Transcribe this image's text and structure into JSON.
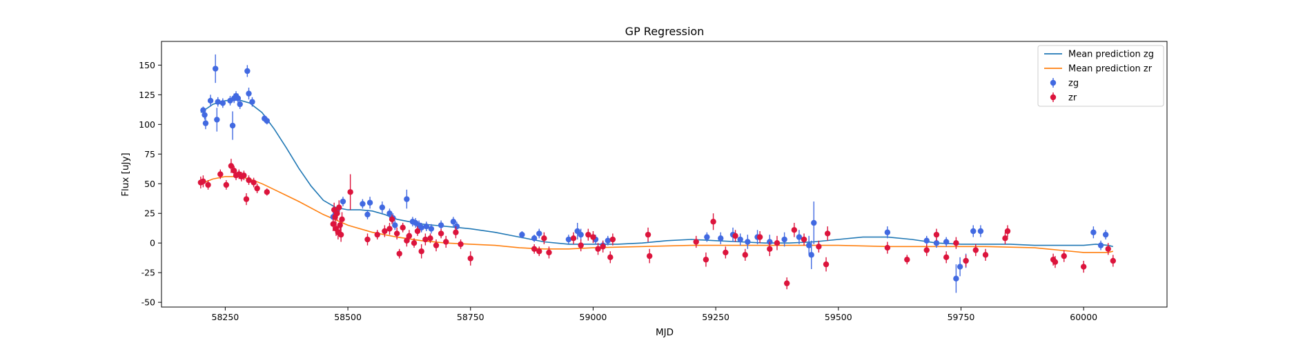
{
  "chart_data": {
    "type": "scatter",
    "title": "GP Regression",
    "xlabel": "MJD",
    "ylabel": "Flux [uJy]",
    "xlim": [
      58120,
      60170
    ],
    "ylim": [
      -54,
      170
    ],
    "xticks": [
      58250,
      58500,
      58750,
      59000,
      59250,
      59500,
      59750,
      60000
    ],
    "yticks": [
      -50,
      -25,
      0,
      25,
      50,
      75,
      100,
      125,
      150
    ],
    "legend_position": "top-right",
    "colors": {
      "mean_zg": "#1f77b4",
      "mean_zr": "#ff7f0e",
      "zg": "#4169e1",
      "zr": "#dc143c"
    },
    "legend": [
      {
        "label": "Mean prediction zg",
        "kind": "line",
        "color": "#1f77b4"
      },
      {
        "label": "Mean prediction zr",
        "kind": "line",
        "color": "#ff7f0e"
      },
      {
        "label": "zg",
        "kind": "errorbar",
        "color": "#4169e1"
      },
      {
        "label": "zr",
        "kind": "errorbar",
        "color": "#dc143c"
      }
    ],
    "lines": [
      {
        "name": "Mean prediction zg",
        "color": "#1f77b4",
        "x": [
          58200,
          58225,
          58250,
          58275,
          58300,
          58325,
          58350,
          58375,
          58400,
          58425,
          58450,
          58475,
          58500,
          58525,
          58550,
          58575,
          58600,
          58650,
          58700,
          58750,
          58800,
          58850,
          58900,
          58950,
          59000,
          59050,
          59100,
          59150,
          59200,
          59250,
          59300,
          59350,
          59400,
          59450,
          59500,
          59550,
          59600,
          59650,
          59700,
          59750,
          59800,
          59850,
          59900,
          59950,
          60000,
          60025,
          60050,
          60060
        ],
        "y": [
          110,
          117,
          120,
          121,
          118,
          110,
          96,
          80,
          63,
          48,
          36,
          30,
          28,
          28,
          27,
          24,
          20,
          16,
          14,
          12,
          9,
          5,
          1,
          -1,
          -1,
          -1,
          0,
          2,
          3,
          2,
          1,
          0,
          0,
          1,
          3,
          5,
          5,
          3,
          0,
          -1,
          -1,
          -1,
          -2,
          -2,
          -2,
          -1,
          -2,
          -3
        ]
      },
      {
        "name": "Mean prediction zr",
        "color": "#ff7f0e",
        "x": [
          58200,
          58225,
          58250,
          58275,
          58300,
          58325,
          58350,
          58375,
          58400,
          58450,
          58500,
          58550,
          58600,
          58650,
          58700,
          58750,
          58800,
          58850,
          58900,
          58950,
          59000,
          59100,
          59200,
          59300,
          59400,
          59500,
          59600,
          59700,
          59800,
          59900,
          59950,
          60000,
          60050,
          60060
        ],
        "y": [
          50,
          54,
          56,
          56,
          54,
          50,
          45,
          40,
          35,
          24,
          15,
          9,
          5,
          2,
          0,
          -1,
          -2,
          -4,
          -5,
          -5,
          -4,
          -3,
          -2,
          -2,
          -2,
          -2,
          -3,
          -3,
          -3,
          -4,
          -6,
          -8,
          -8,
          -7
        ]
      }
    ],
    "series": [
      {
        "name": "zg",
        "color": "#4169e1",
        "x": [
          58205,
          58208,
          58210,
          58220,
          58230,
          58233,
          58235,
          58245,
          58260,
          58265,
          58268,
          58272,
          58276,
          58280,
          58295,
          58298,
          58305,
          58330,
          58335,
          58470,
          58478,
          58490,
          58530,
          58540,
          58545,
          58570,
          58585,
          58592,
          58596,
          58620,
          58632,
          58638,
          58645,
          58650,
          58660,
          58670,
          58690,
          58715,
          58722,
          58855,
          58880,
          58890,
          58950,
          58968,
          58975,
          59005,
          59020,
          59030,
          59232,
          59260,
          59285,
          59300,
          59315,
          59335,
          59360,
          59390,
          59420,
          59440,
          59445,
          59450,
          59600,
          59680,
          59700,
          59720,
          59740,
          59748,
          59760,
          59775,
          59790,
          60020,
          60035,
          60045
        ],
        "y": [
          112,
          108,
          101,
          120,
          147,
          104,
          119,
          118,
          120,
          99,
          122,
          124,
          122,
          117,
          145,
          126,
          119,
          105,
          103,
          22,
          27,
          35,
          33,
          24,
          34,
          30,
          25,
          21,
          15,
          37,
          18,
          17,
          15,
          13,
          14,
          12,
          15,
          18,
          14,
          7,
          4,
          8,
          3,
          10,
          7,
          3,
          -2,
          2,
          5,
          4,
          7,
          3,
          1,
          5,
          1,
          3,
          5,
          -2,
          -10,
          17,
          9,
          2,
          0,
          1,
          -30,
          -20,
          -15,
          10,
          10,
          9,
          -2,
          7
        ],
        "err": [
          3,
          4,
          5,
          5,
          12,
          10,
          4,
          4,
          4,
          12,
          4,
          4,
          4,
          4,
          5,
          5,
          4,
          3,
          3,
          4,
          4,
          4,
          4,
          4,
          5,
          5,
          4,
          4,
          4,
          8,
          4,
          4,
          4,
          4,
          4,
          4,
          4,
          4,
          4,
          3,
          3,
          4,
          4,
          7,
          5,
          4,
          4,
          4,
          4,
          5,
          6,
          5,
          6,
          6,
          6,
          6,
          6,
          8,
          12,
          18,
          5,
          4,
          4,
          4,
          12,
          8,
          6,
          5,
          5,
          5,
          4,
          4
        ]
      },
      {
        "name": "zr",
        "color": "#dc143c",
        "x": [
          58200,
          58205,
          58215,
          58240,
          58252,
          58262,
          58268,
          58272,
          58278,
          58283,
          58288,
          58293,
          58298,
          58308,
          58315,
          58335,
          58470,
          58472,
          58474,
          58476,
          58478,
          58480,
          58482,
          58484,
          58486,
          58488,
          58505,
          58540,
          58560,
          58575,
          58585,
          58590,
          58600,
          58605,
          58612,
          58620,
          58625,
          58635,
          58642,
          58650,
          58658,
          58668,
          58680,
          58690,
          58700,
          58720,
          58730,
          58750,
          58880,
          58890,
          58900,
          58910,
          58960,
          58975,
          58990,
          59000,
          59010,
          59020,
          59035,
          59040,
          59112,
          59115,
          59210,
          59230,
          59245,
          59270,
          59290,
          59310,
          59340,
          59360,
          59375,
          59395,
          59410,
          59430,
          59460,
          59475,
          59478,
          59600,
          59640,
          59680,
          59700,
          59720,
          59740,
          59760,
          59780,
          59800,
          59840,
          59845,
          59938,
          59942,
          59960,
          60000,
          60050,
          60060
        ],
        "y": [
          51,
          52,
          49,
          58,
          49,
          65,
          61,
          57,
          58,
          56,
          57,
          37,
          53,
          51,
          46,
          43,
          16,
          28,
          22,
          12,
          25,
          9,
          30,
          15,
          7,
          20,
          43,
          3,
          7,
          10,
          12,
          20,
          8,
          -9,
          13,
          2,
          6,
          0,
          10,
          -7,
          3,
          4,
          -2,
          8,
          1,
          9,
          -1,
          -13,
          -5,
          -7,
          4,
          -8,
          4,
          -2,
          7,
          5,
          -5,
          -3,
          -12,
          3,
          7,
          -11,
          1,
          -14,
          18,
          -8,
          6,
          -10,
          5,
          -5,
          0,
          -34,
          11,
          3,
          -3,
          -18,
          8,
          -4,
          -14,
          -6,
          7,
          -12,
          0,
          -15,
          -6,
          -10,
          4,
          10,
          -14,
          -16,
          -11,
          -20,
          -5,
          -15
        ],
        "err": [
          5,
          5,
          4,
          4,
          4,
          6,
          4,
          4,
          4,
          4,
          4,
          5,
          4,
          4,
          4,
          3,
          6,
          6,
          6,
          6,
          6,
          6,
          6,
          6,
          6,
          6,
          15,
          5,
          4,
          5,
          5,
          4,
          5,
          4,
          4,
          5,
          5,
          4,
          4,
          6,
          5,
          4,
          5,
          4,
          5,
          5,
          4,
          6,
          4,
          4,
          5,
          5,
          5,
          5,
          5,
          5,
          5,
          5,
          5,
          5,
          6,
          6,
          5,
          6,
          7,
          5,
          5,
          5,
          5,
          6,
          6,
          5,
          6,
          5,
          5,
          6,
          6,
          5,
          4,
          5,
          5,
          5,
          5,
          5,
          5,
          5,
          5,
          5,
          5,
          5,
          5,
          5,
          5,
          5
        ]
      }
    ]
  }
}
